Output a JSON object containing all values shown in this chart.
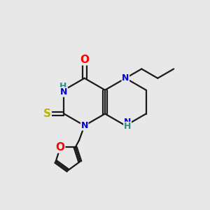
{
  "bg_color": "#e8e8e8",
  "bond_color": "#1a1a1a",
  "atom_colors": {
    "O": "#ff0000",
    "N": "#0000dd",
    "NH": "#2e8b8b",
    "S": "#b8b800",
    "furan_O": "#ff0000"
  },
  "line_width": 1.6,
  "figsize": [
    3.0,
    3.0
  ],
  "dpi": 100
}
